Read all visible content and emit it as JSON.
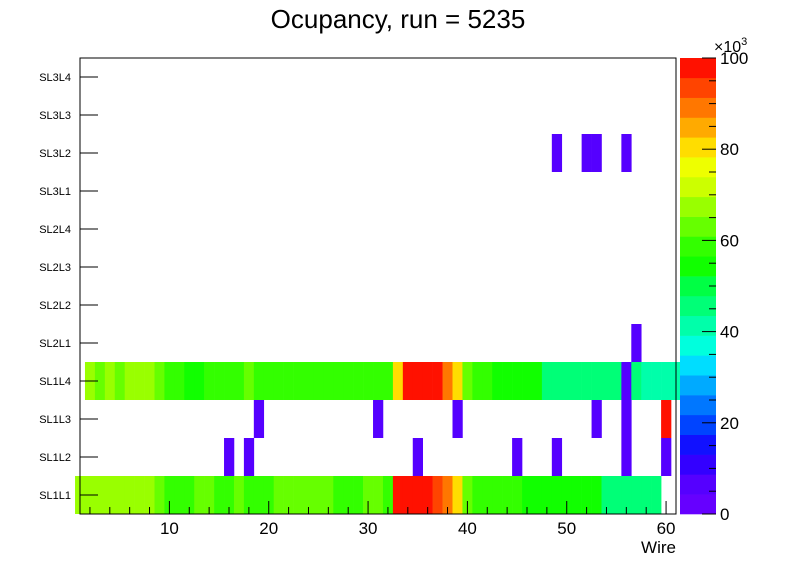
{
  "chart_data": {
    "type": "heatmap",
    "title": "Ocupancy, run = 5235",
    "xlabel": "Wire",
    "ylabel": "",
    "xlim": [
      1,
      61
    ],
    "x_ticks": [
      10,
      20,
      30,
      40,
      50,
      60
    ],
    "layers": [
      "SL1L1",
      "SL1L2",
      "SL1L3",
      "SL1L4",
      "SL2L1",
      "SL2L2",
      "SL2L3",
      "SL2L4",
      "SL3L1",
      "SL3L2",
      "SL3L3",
      "SL3L4"
    ],
    "zlim": [
      0,
      100
    ],
    "z_ticks": [
      0,
      20,
      40,
      60,
      80,
      100
    ],
    "z_multiplier": "×10",
    "z_exponent": "3",
    "cells": {
      "SL1L1": [
        [
          1,
          66
        ],
        [
          2,
          66
        ],
        [
          3,
          66
        ],
        [
          4,
          66
        ],
        [
          5,
          69
        ],
        [
          6,
          69
        ],
        [
          7,
          69
        ],
        [
          8,
          66
        ],
        [
          9,
          62
        ],
        [
          10,
          58
        ],
        [
          11,
          58
        ],
        [
          12,
          58
        ],
        [
          13,
          62
        ],
        [
          14,
          62
        ],
        [
          15,
          58
        ],
        [
          16,
          58
        ],
        [
          17,
          62
        ],
        [
          18,
          58
        ],
        [
          19,
          58
        ],
        [
          20,
          58
        ],
        [
          21,
          65
        ],
        [
          22,
          65
        ],
        [
          23,
          65
        ],
        [
          24,
          65
        ],
        [
          25,
          65
        ],
        [
          26,
          65
        ],
        [
          27,
          60
        ],
        [
          28,
          60
        ],
        [
          29,
          60
        ],
        [
          30,
          65
        ],
        [
          31,
          65
        ],
        [
          32,
          60
        ],
        [
          33,
          100
        ],
        [
          34,
          100
        ],
        [
          35,
          100
        ],
        [
          36,
          100
        ],
        [
          37,
          93
        ],
        [
          38,
          87
        ],
        [
          39,
          80
        ],
        [
          40,
          65
        ],
        [
          41,
          58
        ],
        [
          42,
          58
        ],
        [
          43,
          58
        ],
        [
          44,
          58
        ],
        [
          45,
          58
        ],
        [
          46,
          53
        ],
        [
          47,
          53
        ],
        [
          48,
          53
        ],
        [
          49,
          53
        ],
        [
          50,
          53
        ],
        [
          51,
          53
        ],
        [
          52,
          53
        ],
        [
          53,
          53
        ],
        [
          54,
          46
        ],
        [
          55,
          46
        ],
        [
          56,
          46
        ],
        [
          57,
          46
        ],
        [
          58,
          46
        ],
        [
          59,
          46
        ]
      ],
      "SL1L2": [
        [
          16,
          8
        ],
        [
          18,
          8
        ],
        [
          35,
          8
        ],
        [
          45,
          8
        ],
        [
          49,
          8
        ],
        [
          56,
          8
        ],
        [
          60,
          8
        ]
      ],
      "SL1L3": [
        [
          19,
          8
        ],
        [
          31,
          8
        ],
        [
          39,
          8
        ],
        [
          53,
          8
        ],
        [
          56,
          8
        ],
        [
          60,
          98
        ]
      ],
      "SL1L4": [
        [
          2,
          66
        ],
        [
          3,
          62
        ],
        [
          4,
          66
        ],
        [
          5,
          62
        ],
        [
          6,
          66
        ],
        [
          7,
          66
        ],
        [
          8,
          66
        ],
        [
          9,
          62
        ],
        [
          10,
          58
        ],
        [
          11,
          58
        ],
        [
          12,
          55
        ],
        [
          13,
          55
        ],
        [
          14,
          58
        ],
        [
          15,
          58
        ],
        [
          16,
          58
        ],
        [
          17,
          58
        ],
        [
          18,
          62
        ],
        [
          19,
          58
        ],
        [
          20,
          58
        ],
        [
          21,
          58
        ],
        [
          22,
          58
        ],
        [
          23,
          58
        ],
        [
          24,
          58
        ],
        [
          25,
          58
        ],
        [
          26,
          58
        ],
        [
          27,
          58
        ],
        [
          28,
          58
        ],
        [
          29,
          58
        ],
        [
          30,
          58
        ],
        [
          31,
          58
        ],
        [
          32,
          58
        ],
        [
          33,
          80
        ],
        [
          34,
          100
        ],
        [
          35,
          100
        ],
        [
          36,
          96
        ],
        [
          37,
          96
        ],
        [
          38,
          87
        ],
        [
          39,
          80
        ],
        [
          40,
          62
        ],
        [
          41,
          58
        ],
        [
          42,
          58
        ],
        [
          43,
          53
        ],
        [
          44,
          53
        ],
        [
          45,
          53
        ],
        [
          46,
          53
        ],
        [
          47,
          53
        ],
        [
          48,
          47
        ],
        [
          49,
          47
        ],
        [
          50,
          47
        ],
        [
          51,
          47
        ],
        [
          52,
          47
        ],
        [
          53,
          47
        ],
        [
          54,
          47
        ],
        [
          55,
          47
        ],
        [
          56,
          8
        ],
        [
          57,
          47
        ],
        [
          58,
          42
        ],
        [
          59,
          42
        ],
        [
          60,
          42
        ],
        [
          61,
          42
        ]
      ],
      "SL2L1": [
        [
          57,
          8
        ]
      ],
      "SL3L2": [
        [
          49,
          8
        ],
        [
          52,
          8
        ],
        [
          53,
          8
        ],
        [
          56,
          8
        ]
      ]
    }
  }
}
